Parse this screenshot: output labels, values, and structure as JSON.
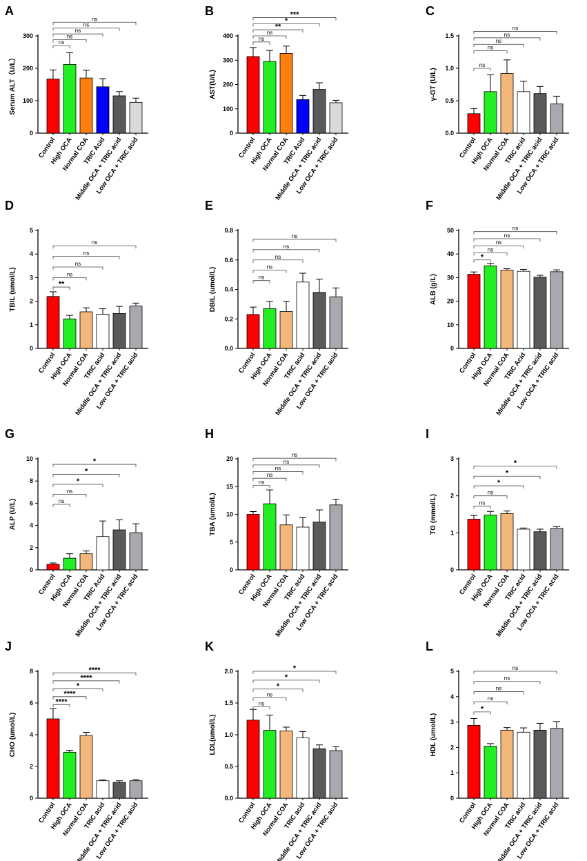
{
  "chart_data": [
    {
      "letter": "A",
      "type": "bar",
      "ylabel": "Serum ALT（U/L）",
      "ylim": [
        0,
        300
      ],
      "yticks": [
        "0",
        "100",
        "200",
        "300"
      ],
      "categories": [
        "Control",
        "High OCA",
        "Normal COA",
        "TRIC Acid",
        "Middle OCA + TRIC acid",
        "Low OCA + TRIC acid"
      ],
      "colors": [
        "#ff0000",
        "#22ee22",
        "#ff7f0e",
        "#0000ff",
        "#5a5a5a",
        "#d9d9d9"
      ],
      "values": [
        167,
        212,
        170,
        143,
        115,
        95
      ],
      "errors": [
        28,
        36,
        24,
        25,
        13,
        13
      ],
      "comparisons": [
        {
          "to": 1,
          "label": "ns",
          "y": 270
        },
        {
          "to": 2,
          "label": "ns",
          "y": 288
        },
        {
          "to": 3,
          "label": "ns",
          "y": 306
        },
        {
          "to": 4,
          "label": "ns",
          "y": 324
        },
        {
          "to": 5,
          "label": "ns",
          "y": 342
        }
      ]
    },
    {
      "letter": "B",
      "type": "bar",
      "ylabel": "AST(U/L)",
      "ylim": [
        0,
        400
      ],
      "yticks": [
        "0",
        "100",
        "200",
        "300",
        "400"
      ],
      "categories": [
        "Control",
        "High OCA",
        "Normal COA",
        "TRIC Acid",
        "Middle OCA + TRIC acid",
        "Low OCA + TRIC acid"
      ],
      "colors": [
        "#ff0000",
        "#22ee22",
        "#ff7f0e",
        "#0000ff",
        "#5a5a5a",
        "#d9d9d9"
      ],
      "values": [
        315,
        295,
        328,
        138,
        180,
        125
      ],
      "errors": [
        37,
        45,
        30,
        17,
        27,
        10
      ],
      "comparisons": [
        {
          "to": 1,
          "label": "ns",
          "y": 375
        },
        {
          "to": 2,
          "label": "ns",
          "y": 400
        },
        {
          "to": 3,
          "label": "**",
          "y": 425
        },
        {
          "to": 4,
          "label": "*",
          "y": 450
        },
        {
          "to": 5,
          "label": "***",
          "y": 475
        }
      ]
    },
    {
      "letter": "C",
      "type": "bar",
      "ylabel": "γ-GT (U/L)",
      "ylim": [
        0,
        1.5
      ],
      "yticks": [
        "0.0",
        "0.5",
        "1.0",
        "1.5"
      ],
      "categories": [
        "Control",
        "High OCA",
        "Normal COA",
        "TRIC acid",
        "Middle OCA + TRIC acid",
        "Low OCA + TRIC acid"
      ],
      "colors": [
        "#ff0000",
        "#22ee22",
        "#f4b77a",
        "#ffffff",
        "#5a5a5a",
        "#a8a8ae"
      ],
      "values": [
        0.3,
        0.64,
        0.92,
        0.64,
        0.61,
        0.45
      ],
      "errors": [
        0.08,
        0.26,
        0.21,
        0.16,
        0.11,
        0.12
      ],
      "comparisons": [
        {
          "to": 1,
          "label": "ns",
          "y": 1.0
        },
        {
          "to": 2,
          "label": "ns",
          "y": 1.27
        },
        {
          "to": 3,
          "label": "ns",
          "y": 1.37
        },
        {
          "to": 4,
          "label": "ns",
          "y": 1.47
        },
        {
          "to": 5,
          "label": "ns",
          "y": 1.57
        }
      ]
    },
    {
      "letter": "D",
      "type": "bar",
      "ylabel": "TBIL (umol/L)",
      "ylim": [
        0,
        5
      ],
      "yticks": [
        "0",
        "1",
        "2",
        "3",
        "4",
        "5"
      ],
      "categories": [
        "Control",
        "High OCA",
        "Normal COA",
        "TRIC acid",
        "Middle OCA + TRIC acid",
        "Low OCA + TRIC acid"
      ],
      "colors": [
        "#ff0000",
        "#22ee22",
        "#f4b77a",
        "#ffffff",
        "#5a5a5a",
        "#a8a8ae"
      ],
      "values": [
        2.2,
        1.25,
        1.55,
        1.45,
        1.48,
        1.8
      ],
      "errors": [
        0.2,
        0.15,
        0.17,
        0.23,
        0.3,
        0.12
      ],
      "comparisons": [
        {
          "to": 1,
          "label": "**",
          "y": 2.6
        },
        {
          "to": 2,
          "label": "ns",
          "y": 3.0
        },
        {
          "to": 3,
          "label": "ns",
          "y": 3.45
        },
        {
          "to": 4,
          "label": "ns",
          "y": 3.9
        },
        {
          "to": 5,
          "label": "ns",
          "y": 4.35
        }
      ]
    },
    {
      "letter": "E",
      "type": "bar",
      "ylabel": "DBIL (umol/L)",
      "ylim": [
        0,
        0.8
      ],
      "yticks": [
        "0.0",
        "0.2",
        "0.4",
        "0.6",
        "0.8"
      ],
      "categories": [
        "Control",
        "High OCA",
        "Normal COA",
        "TRIC acid",
        "Middle OCA + TRIC acid",
        "Low OCA + TRIC acid"
      ],
      "colors": [
        "#ff0000",
        "#22ee22",
        "#f4b77a",
        "#ffffff",
        "#5a5a5a",
        "#a8a8ae"
      ],
      "values": [
        0.23,
        0.27,
        0.25,
        0.45,
        0.38,
        0.35
      ],
      "errors": [
        0.05,
        0.05,
        0.07,
        0.06,
        0.09,
        0.06
      ],
      "comparisons": [
        {
          "to": 1,
          "label": "ns",
          "y": 0.46
        },
        {
          "to": 2,
          "label": "ns",
          "y": 0.53
        },
        {
          "to": 3,
          "label": "ns",
          "y": 0.6
        },
        {
          "to": 4,
          "label": "ns",
          "y": 0.67
        },
        {
          "to": 5,
          "label": "ns",
          "y": 0.74
        }
      ]
    },
    {
      "letter": "F",
      "type": "bar",
      "ylabel": "ALB (g/L)",
      "ylim": [
        0,
        50
      ],
      "yticks": [
        "0",
        "10",
        "20",
        "30",
        "40",
        "50"
      ],
      "categories": [
        "Control",
        "High OCA",
        "Normal COA",
        "TRIC Acid",
        "Middle OCA + TRIC acid",
        "Low OCA + TRIC acid"
      ],
      "colors": [
        "#ff0000",
        "#22ee22",
        "#f4b77a",
        "#ffffff",
        "#5a5a5a",
        "#a8a8ae"
      ],
      "values": [
        31.4,
        35,
        33.2,
        32.7,
        30.2,
        32.5
      ],
      "errors": [
        1.0,
        1.0,
        0.6,
        0.8,
        0.8,
        0.8
      ],
      "comparisons": [
        {
          "to": 1,
          "label": "*",
          "y": 37.5
        },
        {
          "to": 2,
          "label": "ns",
          "y": 40.5
        },
        {
          "to": 3,
          "label": "ns",
          "y": 43.5
        },
        {
          "to": 4,
          "label": "ns",
          "y": 46.5
        },
        {
          "to": 5,
          "label": "ns",
          "y": 49.5
        }
      ]
    },
    {
      "letter": "G",
      "type": "bar",
      "ylabel": "ALP (U/L)",
      "ylim": [
        0,
        10
      ],
      "yticks": [
        "0",
        "2",
        "4",
        "6",
        "8",
        "10"
      ],
      "categories": [
        "Control",
        "High OCA",
        "Normal COA",
        "TRIC Acid",
        "Middle OCA + TRIC acid",
        "Low OCA + TRIC acid"
      ],
      "colors": [
        "#ff0000",
        "#22ee22",
        "#f4b77a",
        "#ffffff",
        "#5a5a5a",
        "#a8a8ae"
      ],
      "values": [
        0.5,
        1.05,
        1.45,
        3.0,
        3.6,
        3.35
      ],
      "errors": [
        0.12,
        0.4,
        0.25,
        1.4,
        0.9,
        0.8
      ],
      "comparisons": [
        {
          "to": 1,
          "label": "ns",
          "y": 5.9
        },
        {
          "to": 2,
          "label": "ns",
          "y": 6.8
        },
        {
          "to": 3,
          "label": "*",
          "y": 7.7
        },
        {
          "to": 4,
          "label": "*",
          "y": 8.6
        },
        {
          "to": 5,
          "label": "*",
          "y": 9.5
        }
      ]
    },
    {
      "letter": "H",
      "type": "bar",
      "ylabel": "TBA (umol/L)",
      "ylim": [
        0,
        20
      ],
      "yticks": [
        "0",
        "5",
        "10",
        "15",
        "20"
      ],
      "categories": [
        "Control",
        "High OCA",
        "Normal COA",
        "TRIC acid",
        "Middle OCA + TRIC acid",
        "Low OCA + TRIC acid"
      ],
      "colors": [
        "#ff0000",
        "#22ee22",
        "#f4b77a",
        "#ffffff",
        "#5a5a5a",
        "#a8a8ae"
      ],
      "values": [
        10,
        11.9,
        8.1,
        7.7,
        8.6,
        11.7
      ],
      "errors": [
        0.5,
        2.5,
        1.8,
        1.7,
        2.2,
        1.0
      ],
      "comparisons": [
        {
          "to": 1,
          "label": "ns",
          "y": 15.2
        },
        {
          "to": 2,
          "label": "ns",
          "y": 16.5
        },
        {
          "to": 3,
          "label": "ns",
          "y": 17.7
        },
        {
          "to": 4,
          "label": "ns",
          "y": 18.9
        },
        {
          "to": 5,
          "label": "ns",
          "y": 20.1
        }
      ]
    },
    {
      "letter": "I",
      "type": "bar",
      "ylabel": "TG (mmol/L)",
      "ylim": [
        0,
        3
      ],
      "yticks": [
        "0",
        "1",
        "2",
        "3"
      ],
      "categories": [
        "Control",
        "High OCA",
        "Normal COA",
        "TRIC acid",
        "Middle OCA + TRIC acid",
        "Low OCA + TRIC acid"
      ],
      "colors": [
        "#ff0000",
        "#22ee22",
        "#f4b77a",
        "#ffffff",
        "#5a5a5a",
        "#a8a8ae"
      ],
      "values": [
        1.37,
        1.48,
        1.52,
        1.1,
        1.03,
        1.12
      ],
      "errors": [
        0.1,
        0.1,
        0.07,
        0.03,
        0.07,
        0.05
      ],
      "comparisons": [
        {
          "to": 1,
          "label": "ns",
          "y": 1.72
        },
        {
          "to": 2,
          "label": "ns",
          "y": 2.0
        },
        {
          "to": 3,
          "label": "*",
          "y": 2.27
        },
        {
          "to": 4,
          "label": "*",
          "y": 2.53
        },
        {
          "to": 5,
          "label": "*",
          "y": 2.8
        }
      ]
    },
    {
      "letter": "J",
      "type": "bar",
      "ylabel": "CHO (umol/L)",
      "ylim": [
        0,
        8
      ],
      "yticks": [
        "0",
        "2",
        "4",
        "6",
        "8"
      ],
      "categories": [
        "Control",
        "High OCA",
        "Normal COA",
        "TRIC acid",
        "Middle OCA + TRIC acid",
        "Low OCA + TRIC acid"
      ],
      "colors": [
        "#ff0000",
        "#22ee22",
        "#f4b77a",
        "#ffffff",
        "#5a5a5a",
        "#a8a8ae"
      ],
      "values": [
        5.0,
        2.9,
        3.95,
        1.1,
        1.0,
        1.1
      ],
      "errors": [
        0.65,
        0.12,
        0.2,
        0.05,
        0.1,
        0.07
      ],
      "comparisons": [
        {
          "to": 1,
          "label": "****",
          "y": 5.9
        },
        {
          "to": 2,
          "label": "****",
          "y": 6.4
        },
        {
          "to": 3,
          "label": "*",
          "y": 6.9
        },
        {
          "to": 4,
          "label": "****",
          "y": 7.4
        },
        {
          "to": 5,
          "label": "****",
          "y": 7.9
        }
      ]
    },
    {
      "letter": "K",
      "type": "bar",
      "ylabel": "LDL(umol/L)",
      "ylim": [
        0,
        2.0
      ],
      "yticks": [
        "0.0",
        "0.5",
        "1.0",
        "1.5",
        "2.0"
      ],
      "categories": [
        "Control",
        "High OCA",
        "Normal COA",
        "TRIC acid",
        "Middle OCA + TRIC acid",
        "Low OCA + TRIC acid"
      ],
      "colors": [
        "#ff0000",
        "#22ee22",
        "#f4b77a",
        "#ffffff",
        "#5a5a5a",
        "#a8a8ae"
      ],
      "values": [
        1.23,
        1.07,
        1.06,
        0.95,
        0.78,
        0.75
      ],
      "errors": [
        0.17,
        0.24,
        0.06,
        0.1,
        0.06,
        0.06
      ],
      "comparisons": [
        {
          "to": 1,
          "label": "ns",
          "y": 1.44
        },
        {
          "to": 2,
          "label": "ns",
          "y": 1.58
        },
        {
          "to": 3,
          "label": "*",
          "y": 1.72
        },
        {
          "to": 4,
          "label": "*",
          "y": 1.86
        },
        {
          "to": 5,
          "label": "*",
          "y": 2.0
        }
      ]
    },
    {
      "letter": "L",
      "type": "bar",
      "ylabel": "HDL (umol/L)",
      "ylim": [
        0,
        5
      ],
      "yticks": [
        "0",
        "1",
        "2",
        "3",
        "4",
        "5"
      ],
      "categories": [
        "Control",
        "High OCA",
        "Normal COA",
        "TRIC acid",
        "Middle OCA + TRIC acid",
        "Low OCA + TRIC acid"
      ],
      "colors": [
        "#ff0000",
        "#22ee22",
        "#f4b77a",
        "#ffffff",
        "#5a5a5a",
        "#a8a8ae"
      ],
      "values": [
        2.87,
        2.05,
        2.68,
        2.6,
        2.68,
        2.75
      ],
      "errors": [
        0.27,
        0.1,
        0.1,
        0.17,
        0.27,
        0.27
      ],
      "comparisons": [
        {
          "to": 1,
          "label": "*",
          "y": 3.4
        },
        {
          "to": 2,
          "label": "ns",
          "y": 3.8
        },
        {
          "to": 3,
          "label": "ns",
          "y": 4.2
        },
        {
          "to": 4,
          "label": "ns",
          "y": 4.6
        },
        {
          "to": 5,
          "label": "ns",
          "y": 5.0
        }
      ]
    }
  ]
}
